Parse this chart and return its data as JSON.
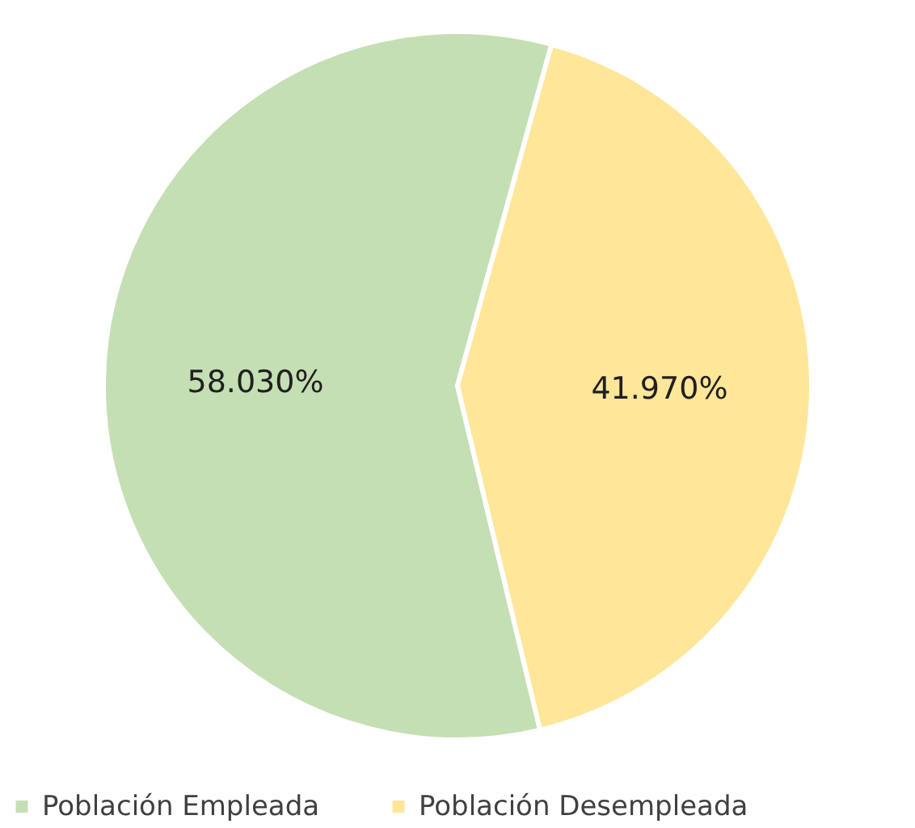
{
  "chart_data": {
    "type": "pie",
    "categories": [
      "Población Empleada",
      "Población Desempleada"
    ],
    "values": [
      58.03,
      41.97
    ],
    "colors": [
      "#c5dfb4",
      "#ffe699"
    ],
    "value_labels": [
      "58.030%",
      "41.970%"
    ],
    "legend": "bottom"
  }
}
